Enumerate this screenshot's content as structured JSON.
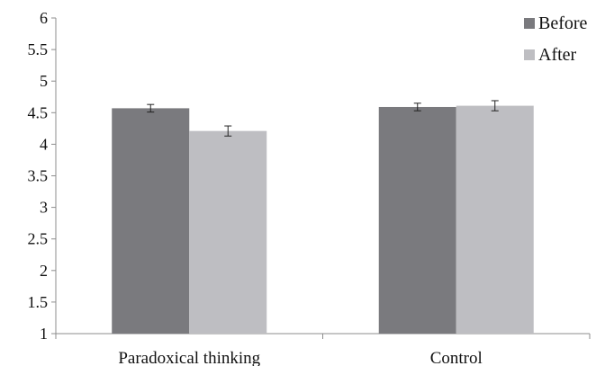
{
  "chart_data": {
    "type": "bar",
    "title": "",
    "xlabel": "",
    "ylabel": "",
    "categories": [
      "Paradoxical thinking",
      "Control"
    ],
    "series": [
      {
        "name": "Before",
        "color": "#7a7a7e",
        "values": [
          4.57,
          4.59
        ],
        "error": [
          0.06,
          0.06
        ]
      },
      {
        "name": "After",
        "color": "#bebec2",
        "values": [
          4.21,
          4.61
        ],
        "error": [
          0.08,
          0.08
        ]
      }
    ],
    "ylim": [
      1,
      6
    ],
    "yticks": [
      "1",
      "1.5",
      "2",
      "2.5",
      "3",
      "3.5",
      "4",
      "4.5",
      "5",
      "5.5",
      "6"
    ],
    "ytick_values": [
      1,
      1.5,
      2,
      2.5,
      3,
      3.5,
      4,
      4.5,
      5,
      5.5,
      6
    ],
    "grid": false,
    "legend_position": "top-right",
    "error_bars": true
  }
}
